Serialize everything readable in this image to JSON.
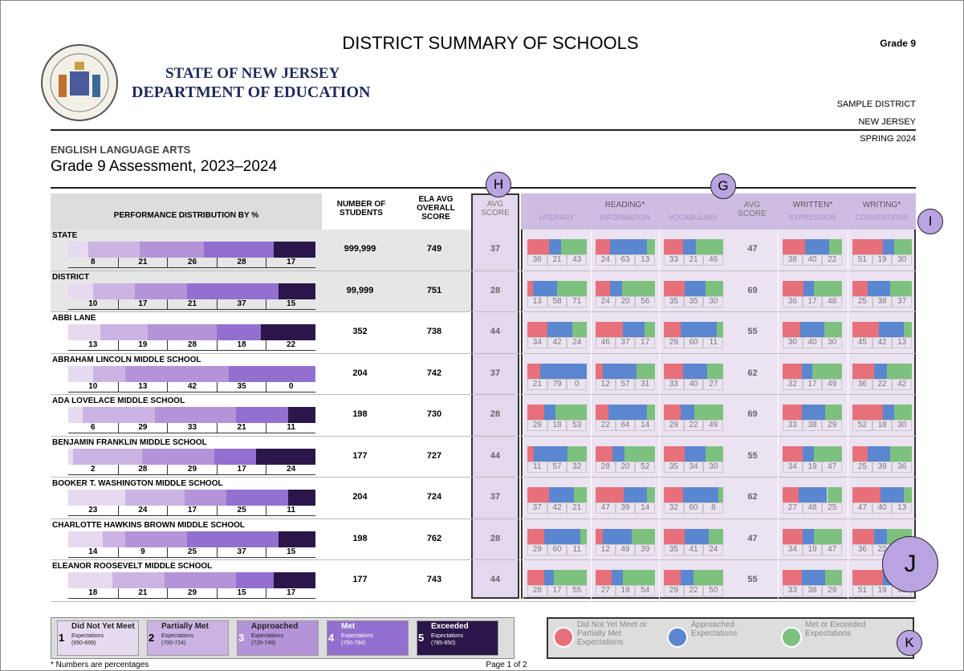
{
  "header": {
    "title": "DISTRICT SUMMARY OF SCHOOLS",
    "grade": "Grade 9",
    "state": "STATE OF NEW JERSEY",
    "department": "DEPARTMENT OF EDUCATION",
    "district": "SAMPLE DISTRICT",
    "region": "NEW JERSEY",
    "season": "SPRING 2024"
  },
  "subject": "ENGLISH LANGUAGE ARTS",
  "assessment": "Grade 9 Assessment, 2023–2024",
  "columns": {
    "distribution": "PERFORMANCE DISTRIBUTION BY %",
    "students": "NUMBER OF STUDENTS",
    "ela": "ELA AVG OVERALL SCORE",
    "avg": "AVG SCORE",
    "reading": "READING*",
    "literary": "LITERARY",
    "information": "INFORMATION",
    "vocabulary": "VOCABULARY",
    "avg2": "AVG SCORE",
    "written": "WRITTEN*",
    "expression": "EXPRESSION",
    "writing": "WRITING*",
    "conventions": "CONVENTIONS"
  },
  "callouts": [
    "H",
    "G",
    "I",
    "J",
    "K"
  ],
  "rows": [
    {
      "name": "STATE",
      "dist": [
        8,
        21,
        26,
        28,
        17
      ],
      "students": "999,999",
      "ela": 749,
      "avg": 37,
      "literary": [
        36,
        21,
        43
      ],
      "information": [
        24,
        63,
        13
      ],
      "vocabulary": [
        33,
        21,
        46
      ],
      "avg2": 47,
      "expression": [
        38,
        40,
        22
      ],
      "conventions": [
        51,
        19,
        30
      ]
    },
    {
      "name": "DISTRICT",
      "dist": [
        10,
        17,
        21,
        37,
        15
      ],
      "students": "99,999",
      "ela": 751,
      "avg": 28,
      "literary": [
        13,
        58,
        71
      ],
      "information": [
        24,
        20,
        56
      ],
      "vocabulary": [
        35,
        35,
        30
      ],
      "avg2": 69,
      "expression": [
        36,
        17,
        48
      ],
      "conventions": [
        25,
        38,
        37
      ]
    },
    {
      "name": "ABBI LANE",
      "dist": [
        13,
        19,
        28,
        18,
        22
      ],
      "students": "352",
      "ela": 738,
      "avg": 44,
      "literary": [
        34,
        42,
        24
      ],
      "information": [
        46,
        37,
        17
      ],
      "vocabulary": [
        29,
        60,
        11
      ],
      "avg2": 55,
      "expression": [
        30,
        40,
        30
      ],
      "conventions": [
        45,
        42,
        13
      ]
    },
    {
      "name": "ABRAHAM LINCOLN MIDDLE SCHOOL",
      "dist": [
        10,
        13,
        42,
        35,
        0
      ],
      "students": "204",
      "ela": 742,
      "avg": 37,
      "literary": [
        21,
        79,
        0
      ],
      "information": [
        12,
        57,
        31
      ],
      "vocabulary": [
        33,
        40,
        27
      ],
      "avg2": 62,
      "expression": [
        32,
        17,
        49
      ],
      "conventions": [
        36,
        22,
        42
      ]
    },
    {
      "name": "ADA LOVELACE MIDDLE SCHOOL",
      "dist": [
        6,
        29,
        33,
        21,
        11
      ],
      "students": "198",
      "ela": 730,
      "avg": 28,
      "literary": [
        29,
        18,
        53
      ],
      "information": [
        22,
        64,
        14
      ],
      "vocabulary": [
        29,
        22,
        49
      ],
      "avg2": 69,
      "expression": [
        33,
        38,
        29
      ],
      "conventions": [
        52,
        18,
        30
      ]
    },
    {
      "name": "BENJAMIN FRANKLIN MIDDLE SCHOOL",
      "dist": [
        2,
        28,
        29,
        17,
        24
      ],
      "students": "177",
      "ela": 727,
      "avg": 44,
      "literary": [
        11,
        57,
        32
      ],
      "information": [
        28,
        20,
        52
      ],
      "vocabulary": [
        35,
        34,
        30
      ],
      "avg2": 55,
      "expression": [
        34,
        19,
        47
      ],
      "conventions": [
        25,
        39,
        36
      ]
    },
    {
      "name": "BOOKER T. WASHINGTON MIDDLE SCHOOL",
      "dist": [
        23,
        24,
        17,
        25,
        11
      ],
      "students": "204",
      "ela": 724,
      "avg": 37,
      "literary": [
        37,
        42,
        21
      ],
      "information": [
        47,
        39,
        14
      ],
      "vocabulary": [
        32,
        60,
        8
      ],
      "avg2": 62,
      "expression": [
        27,
        48,
        25
      ],
      "conventions": [
        47,
        40,
        13
      ]
    },
    {
      "name": "CHARLOTTE HAWKINS BROWN MIDDLE SCHOOL",
      "dist": [
        14,
        9,
        25,
        37,
        15
      ],
      "students": "198",
      "ela": 762,
      "avg": 28,
      "literary": [
        29,
        60,
        11
      ],
      "information": [
        12,
        49,
        39
      ],
      "vocabulary": [
        35,
        41,
        24
      ],
      "avg2": 47,
      "expression": [
        34,
        19,
        47
      ],
      "conventions": [
        36,
        22,
        42
      ]
    },
    {
      "name": "ELEANOR ROOSEVELT MIDDLE SCHOOL",
      "dist": [
        18,
        21,
        29,
        15,
        17
      ],
      "students": "177",
      "ela": 743,
      "avg": 44,
      "literary": [
        28,
        17,
        55
      ],
      "information": [
        27,
        19,
        54
      ],
      "vocabulary": [
        29,
        22,
        50
      ],
      "avg2": 55,
      "expression": [
        33,
        38,
        29
      ],
      "conventions": [
        51,
        19,
        30
      ]
    }
  ],
  "legend": [
    {
      "level": "1",
      "label": "Did Not Yet Meet",
      "sub": "Expectations",
      "range": "(650-699)"
    },
    {
      "level": "2",
      "label": "Partially Met",
      "sub": "Expectations",
      "range": "(700-724)"
    },
    {
      "level": "3",
      "label": "Approached",
      "sub": "Expectations",
      "range": "(725-749)"
    },
    {
      "level": "4",
      "label": "Met",
      "sub": "Expectations",
      "range": "(750-784)"
    },
    {
      "level": "5",
      "label": "Exceeded",
      "sub": "Expectations",
      "range": "(785-850)"
    }
  ],
  "icons": [
    "Did Not Yet Meet or Partially Met Expectations",
    "Approached Expectations",
    "Met or Exceeded Expectations"
  ],
  "footnote": "* Numbers are percentages",
  "page": "Page 1 of 2"
}
